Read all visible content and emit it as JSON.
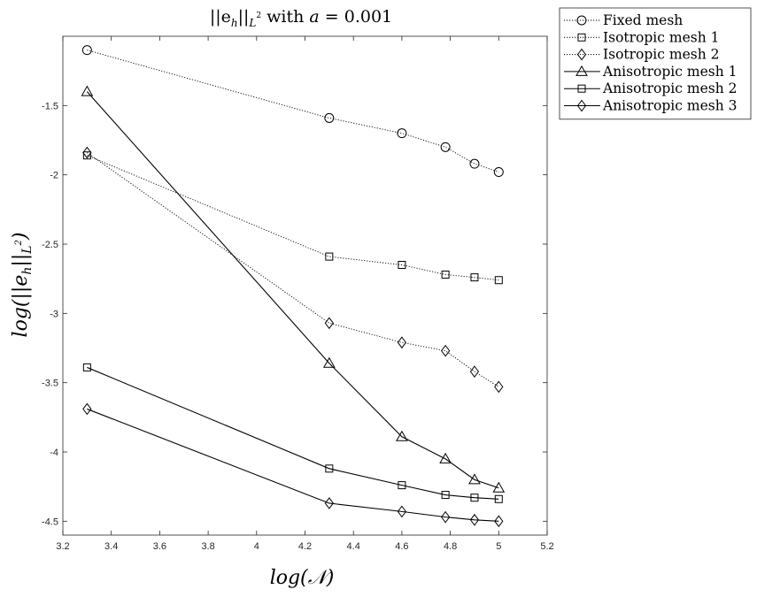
{
  "chart_data": {
    "type": "line",
    "title": "||e_h||_{L²} with a = 0.001",
    "title_parts": {
      "norm": "||e",
      "sub_h": "h",
      "bars": "||",
      "sub_space": "L",
      "sup_two": "2",
      "rest": " with ",
      "var": "a",
      "eq": " = 0.001"
    },
    "xlabel": "log(𝒩)",
    "ylabel": "log(||e_h||_{L²})",
    "ylabel_parts": {
      "pre": "log(||e",
      "sub_h": "h",
      "bars": "||",
      "sub_space": "L",
      "sup_two": "2",
      "close": ")"
    },
    "xlim": [
      3.2,
      5.2
    ],
    "ylim": [
      -4.6,
      -1.0
    ],
    "x_ticks": [
      3.2,
      3.4,
      3.6,
      3.8,
      4,
      4.2,
      4.4,
      4.6,
      4.8,
      5,
      5.2
    ],
    "x_tick_labels": [
      "3.2",
      "3.4",
      "3.6",
      "3.8",
      "4",
      "4.2",
      "4.4",
      "4.6",
      "4.8",
      "5",
      "5.2"
    ],
    "y_ticks": [
      -4.5,
      -4,
      -3.5,
      -3,
      -2.5,
      -2,
      -1.5
    ],
    "y_tick_labels": [
      "-4.5",
      "-4",
      "-3.5",
      "-3",
      "-2.5",
      "-2",
      "-1.5"
    ],
    "grid": false,
    "legend_position": "outside top-right",
    "series": [
      {
        "name": "Fixed mesh",
        "marker": "circle",
        "line_style": "dotted",
        "x": [
          3.3,
          4.3,
          4.6,
          4.78,
          4.9,
          5.0
        ],
        "y": [
          -1.1,
          -1.59,
          -1.7,
          -1.8,
          -1.92,
          -1.98
        ]
      },
      {
        "name": "Isotropic mesh 1",
        "marker": "square",
        "line_style": "dotted",
        "x": [
          3.3,
          4.3,
          4.6,
          4.78,
          4.9,
          5.0
        ],
        "y": [
          -1.86,
          -2.59,
          -2.65,
          -2.72,
          -2.74,
          -2.76
        ]
      },
      {
        "name": "Isotropic mesh 2",
        "marker": "diamond",
        "line_style": "dotted",
        "x": [
          3.3,
          4.3,
          4.6,
          4.78,
          4.9,
          5.0
        ],
        "y": [
          -1.84,
          -3.07,
          -3.21,
          -3.27,
          -3.42,
          -3.53
        ]
      },
      {
        "name": "Anisotropic mesh 1",
        "marker": "triangle",
        "line_style": "solid",
        "x": [
          3.3,
          4.3,
          4.6,
          4.78,
          4.9,
          5.0
        ],
        "y": [
          -1.4,
          -3.36,
          -3.89,
          -4.05,
          -4.2,
          -4.26
        ]
      },
      {
        "name": "Anisotropic mesh 2",
        "marker": "square",
        "line_style": "solid",
        "x": [
          3.3,
          4.3,
          4.6,
          4.78,
          4.9,
          5.0
        ],
        "y": [
          -3.39,
          -4.12,
          -4.24,
          -4.31,
          -4.33,
          -4.34
        ]
      },
      {
        "name": "Anisotropic mesh 3",
        "marker": "diamond",
        "line_style": "solid",
        "x": [
          3.3,
          4.3,
          4.6,
          4.78,
          4.9,
          5.0
        ],
        "y": [
          -3.69,
          -4.37,
          -4.43,
          -4.47,
          -4.49,
          -4.5
        ]
      }
    ],
    "colors": {
      "line": "#000000",
      "axis": "#262626",
      "background": "#ffffff"
    }
  }
}
